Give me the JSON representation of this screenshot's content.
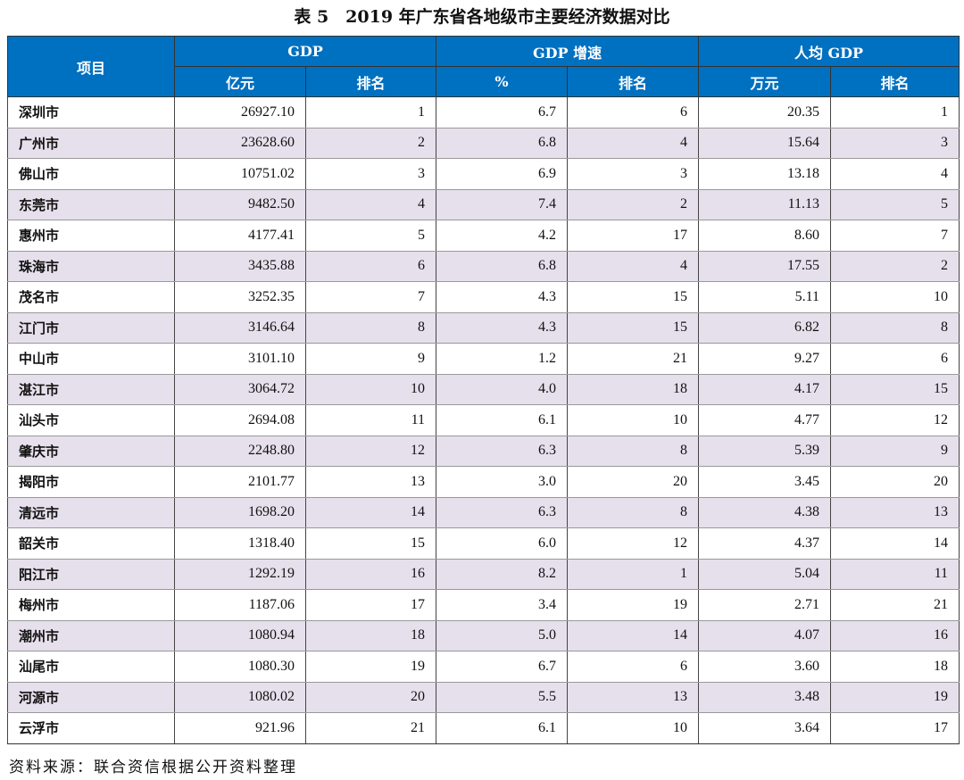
{
  "title": "表 5　2019 年广东省各地级市主要经济数据对比",
  "header": {
    "item": "项目",
    "gdp": "GDP",
    "gdp_growth": "GDP 增速",
    "per_capita": "人均 GDP",
    "unit_gdp": "亿元",
    "rank": "排名",
    "unit_growth": "%",
    "unit_per_capita": "万元"
  },
  "rows": [
    [
      "深圳市",
      "26927.10",
      "1",
      "6.7",
      "6",
      "20.35",
      "1"
    ],
    [
      "广州市",
      "23628.60",
      "2",
      "6.8",
      "4",
      "15.64",
      "3"
    ],
    [
      "佛山市",
      "10751.02",
      "3",
      "6.9",
      "3",
      "13.18",
      "4"
    ],
    [
      "东莞市",
      "9482.50",
      "4",
      "7.4",
      "2",
      "11.13",
      "5"
    ],
    [
      "惠州市",
      "4177.41",
      "5",
      "4.2",
      "17",
      "8.60",
      "7"
    ],
    [
      "珠海市",
      "3435.88",
      "6",
      "6.8",
      "4",
      "17.55",
      "2"
    ],
    [
      "茂名市",
      "3252.35",
      "7",
      "4.3",
      "15",
      "5.11",
      "10"
    ],
    [
      "江门市",
      "3146.64",
      "8",
      "4.3",
      "15",
      "6.82",
      "8"
    ],
    [
      "中山市",
      "3101.10",
      "9",
      "1.2",
      "21",
      "9.27",
      "6"
    ],
    [
      "湛江市",
      "3064.72",
      "10",
      "4.0",
      "18",
      "4.17",
      "15"
    ],
    [
      "汕头市",
      "2694.08",
      "11",
      "6.1",
      "10",
      "4.77",
      "12"
    ],
    [
      "肇庆市",
      "2248.80",
      "12",
      "6.3",
      "8",
      "5.39",
      "9"
    ],
    [
      "揭阳市",
      "2101.77",
      "13",
      "3.0",
      "20",
      "3.45",
      "20"
    ],
    [
      "清远市",
      "1698.20",
      "14",
      "6.3",
      "8",
      "4.38",
      "13"
    ],
    [
      "韶关市",
      "1318.40",
      "15",
      "6.0",
      "12",
      "4.37",
      "14"
    ],
    [
      "阳江市",
      "1292.19",
      "16",
      "8.2",
      "1",
      "5.04",
      "11"
    ],
    [
      "梅州市",
      "1187.06",
      "17",
      "3.4",
      "19",
      "2.71",
      "21"
    ],
    [
      "潮州市",
      "1080.94",
      "18",
      "5.0",
      "14",
      "4.07",
      "16"
    ],
    [
      "汕尾市",
      "1080.30",
      "19",
      "6.7",
      "6",
      "3.60",
      "18"
    ],
    [
      "河源市",
      "1080.02",
      "20",
      "5.5",
      "13",
      "3.48",
      "19"
    ],
    [
      "云浮市",
      "921.96",
      "21",
      "6.1",
      "10",
      "3.64",
      "17"
    ]
  ],
  "source": "资料来源：联合资信根据公开资料整理",
  "colors": {
    "header": "#0070c0",
    "alt_row": "#e6e0ec"
  }
}
